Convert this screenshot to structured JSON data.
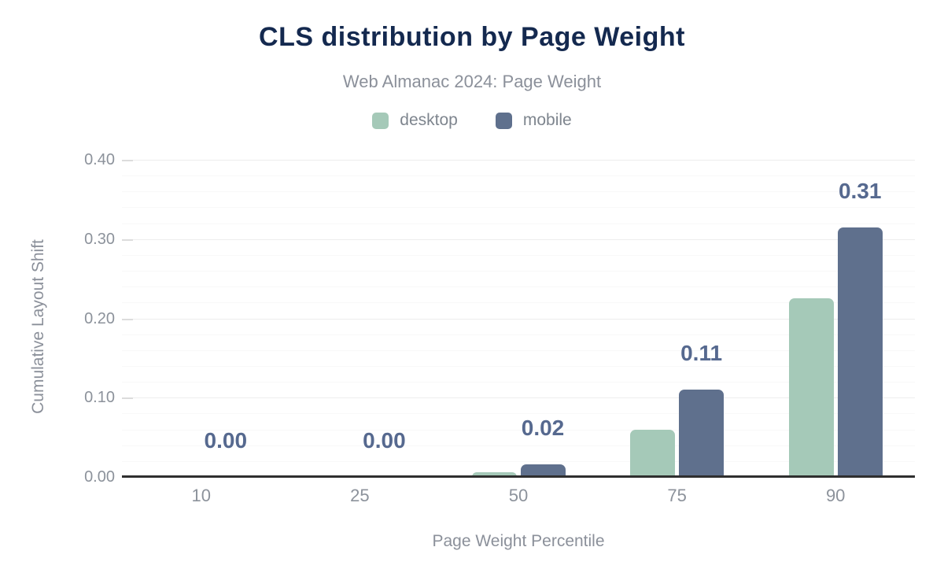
{
  "header": {
    "title": "CLS distribution by Page Weight",
    "subtitle": "Web Almanac 2024: Page Weight"
  },
  "chart_data": {
    "type": "bar",
    "title": "CLS distribution by Page Weight",
    "subtitle": "Web Almanac 2024: Page Weight",
    "categories": [
      "10",
      "25",
      "50",
      "75",
      "90"
    ],
    "series": [
      {
        "name": "desktop",
        "color": "#a5c9b8",
        "values": [
          0,
          0,
          0.006,
          0.06,
          0.225
        ]
      },
      {
        "name": "mobile",
        "color": "#5f708d",
        "values": [
          0,
          0,
          0.016,
          0.11,
          0.315
        ]
      }
    ],
    "data_labels": {
      "on_series": "mobile",
      "values": [
        "0.00",
        "0.00",
        "0.02",
        "0.11",
        "0.31"
      ],
      "color": "#56698f"
    },
    "xlabel": "Page Weight Percentile",
    "ylabel": "Cumulative Layout Shift",
    "ylim": [
      0,
      0.4
    ],
    "yticks": {
      "values": [
        0,
        0.1,
        0.2,
        0.3,
        0.4
      ],
      "labels": [
        "0.00",
        "0.10",
        "0.20",
        "0.30",
        "0.40"
      ]
    },
    "grid": {
      "minor_step": 0.02,
      "major_step": 0.1,
      "minor_color": "#f8f8f8",
      "major_color": "#ededed"
    },
    "legend_position": "top",
    "colors": {
      "axis_line": "#2f2f2f",
      "tick_label": "#8c929b",
      "axis_title": "#8b909a"
    }
  }
}
